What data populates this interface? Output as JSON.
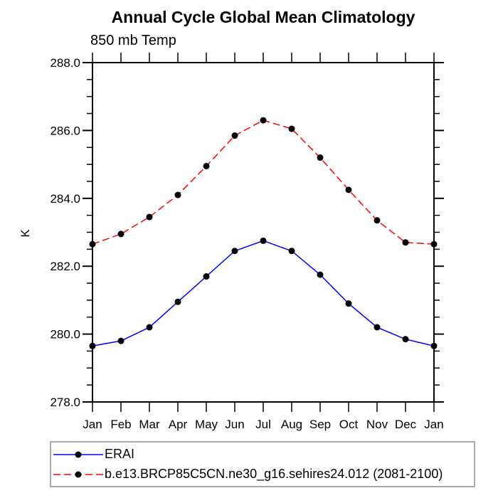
{
  "chart_data": {
    "type": "line",
    "title": "Annual Cycle Global Mean Climatology",
    "subtitle": "850 mb Temp",
    "ylabel": "K",
    "x": [
      "Jan",
      "Feb",
      "Mar",
      "Apr",
      "May",
      "Jun",
      "Jul",
      "Aug",
      "Sep",
      "Oct",
      "Nov",
      "Dec",
      "Jan"
    ],
    "ylim": [
      278.0,
      288.0
    ],
    "ytick_labels": [
      "278.0",
      "280.0",
      "282.0",
      "284.0",
      "286.0",
      "288.0"
    ],
    "ytick_minor_step": 0.5,
    "grid": false,
    "legend_position": "bottom-left",
    "axis_color": "#000000",
    "series": [
      {
        "name": "ERAI",
        "color": "#0000ff",
        "line_style": "solid",
        "marker": "filled-circle",
        "marker_color": "#000000",
        "values": [
          279.65,
          279.8,
          280.2,
          280.95,
          281.7,
          282.45,
          282.75,
          282.45,
          281.75,
          280.9,
          280.2,
          279.85,
          279.65
        ]
      },
      {
        "name": "b.e13.BRCP85C5CN.ne30_g16.sehires24.012 (2081-2100)",
        "color": "#ff0000",
        "line_style": "dashed",
        "marker": "filled-circle",
        "marker_color": "#000000",
        "values": [
          282.65,
          282.95,
          283.45,
          284.1,
          284.95,
          285.85,
          286.3,
          286.05,
          285.2,
          284.25,
          283.35,
          282.7,
          282.65
        ]
      }
    ]
  }
}
